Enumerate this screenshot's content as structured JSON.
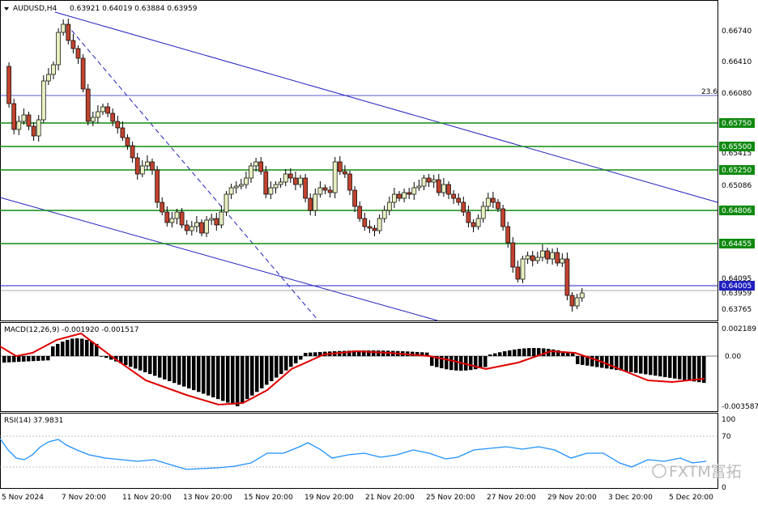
{
  "header": {
    "symbol": "AUDUSD,H4",
    "ohlc": "0.63921 0.64019 0.63884 0.63959"
  },
  "indicators": {
    "macd_label": "MACD(12,26,9) -0.001920 -0.001517",
    "rsi_label": "RSI(14) 37.9831"
  },
  "price_axis": [
    "0.66740",
    "0.66410",
    "0.66080",
    "0.65415",
    "0.65086",
    "0.64095",
    "0.63765"
  ],
  "level_labels": [
    "0.65750",
    "0.65500",
    "0.65250",
    "0.64806",
    "0.64455",
    "0.64005"
  ],
  "overlapped_label": "0.63959",
  "fib_label": "23.6",
  "macd_axis": [
    "0.002189",
    "0.00",
    "-0.003587"
  ],
  "rsi_axis": [
    "100",
    "70",
    "0"
  ],
  "time_axis": [
    "5 Nov 2024",
    "7 Nov 20:00",
    "11 Nov 20:00",
    "13 Nov 20:00",
    "15 Nov 20:00",
    "19 Nov 20:00",
    "21 Nov 20:00",
    "25 Nov 20:00",
    "27 Nov 20:00",
    "29 Nov 20:00",
    "3 Dec 20:00",
    "5 Dec 20:00"
  ],
  "watermark": "FXTM富拓",
  "colors": {
    "up": "#e8efc0",
    "down": "#c0432f",
    "level": "#108a10",
    "channel": "#2020c0",
    "macd_signal": "#e00000",
    "rsi": "#1e90ff"
  }
}
